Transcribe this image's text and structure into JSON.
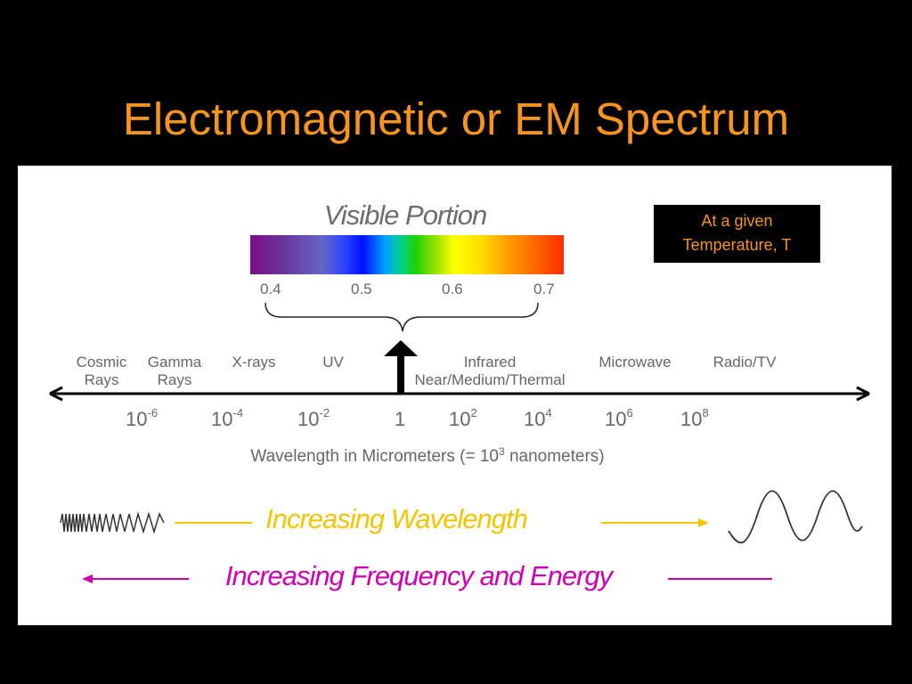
{
  "title": "Electromagnetic or EM Spectrum",
  "visible": {
    "title": "Visible Portion",
    "ticks": [
      "0.4",
      "0.5",
      "0.6",
      "0.7"
    ]
  },
  "note": {
    "line1": "At a given",
    "line2": "Temperature, T"
  },
  "regions": {
    "cosmic": [
      "Cosmic",
      "Rays"
    ],
    "gamma": [
      "Gamma",
      "Rays"
    ],
    "xrays": "X-rays",
    "uv": "UV",
    "infrared": [
      "Infrared",
      "Near/Medium/Thermal"
    ],
    "microwave": "Microwave",
    "radio": "Radio/TV"
  },
  "scale": {
    "base": "10",
    "exponents": [
      "-6",
      "-4",
      "-2",
      "",
      "2",
      "4",
      "6",
      "8"
    ],
    "one": "1"
  },
  "axis_label": {
    "prefix": "Wavelength in Micrometers (= 10",
    "exp": "3",
    "suffix": " nanometers)"
  },
  "increasing_wavelength": "Increasing Wavelength",
  "increasing_frequency": "Increasing Frequency and Energy",
  "colors": {
    "title": "#f7941d",
    "wavelength": "#f5c400",
    "frequency": "#d200b4",
    "text_gray": "#666666"
  }
}
